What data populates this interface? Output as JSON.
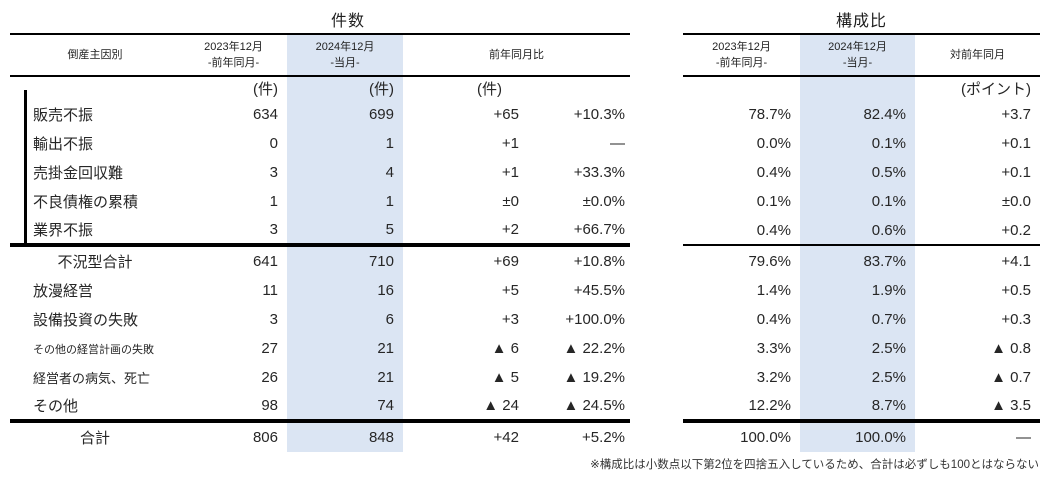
{
  "titles": {
    "left": "件数",
    "right": "構成比"
  },
  "colors": {
    "highlight": "#dbe5f3",
    "line": "#000000"
  },
  "header": {
    "cause_label": "倒産主因別",
    "col_2023_line1": "2023年12月",
    "col_2023_line2": "-前年同月-",
    "col_2024_line1": "2024年12月",
    "col_2024_line2": "-当月-",
    "yoy_label": "前年同月比",
    "vs_prev_label": "対前年同月"
  },
  "units": {
    "ken": "(件)",
    "point": "(ポイント)"
  },
  "rows": [
    {
      "type": "cause",
      "label_class": "",
      "label": "販売不振",
      "c2023": "634",
      "c2024": "699",
      "diff": "+65",
      "pct": "+10.3%",
      "r2023": "78.7%",
      "r2024": "82.4%",
      "rdiff": "+3.7"
    },
    {
      "type": "cause",
      "label_class": "",
      "label": "輸出不振",
      "c2023": "0",
      "c2024": "1",
      "diff": "+1",
      "pct": "—",
      "r2023": "0.0%",
      "r2024": "0.1%",
      "rdiff": "+0.1"
    },
    {
      "type": "cause",
      "label_class": "",
      "label": "売掛金回収難",
      "c2023": "3",
      "c2024": "4",
      "diff": "+1",
      "pct": "+33.3%",
      "r2023": "0.4%",
      "r2024": "0.5%",
      "rdiff": "+0.1"
    },
    {
      "type": "cause",
      "label_class": "",
      "label": "不良債権の累積",
      "c2023": "1",
      "c2024": "1",
      "diff": "±0",
      "pct": "±0.0%",
      "r2023": "0.1%",
      "r2024": "0.1%",
      "rdiff": "±0.0"
    },
    {
      "type": "cause",
      "label_class": "",
      "label": "業界不振",
      "c2023": "3",
      "c2024": "5",
      "diff": "+2",
      "pct": "+66.7%",
      "r2023": "0.4%",
      "r2024": "0.6%",
      "rdiff": "+0.2"
    },
    {
      "type": "subtotal",
      "label_class": "",
      "label": "不況型合計",
      "c2023": "641",
      "c2024": "710",
      "diff": "+69",
      "pct": "+10.8%",
      "r2023": "79.6%",
      "r2024": "83.7%",
      "rdiff": "+4.1"
    },
    {
      "type": "cause",
      "label_class": "",
      "label": "放漫経営",
      "c2023": "11",
      "c2024": "16",
      "diff": "+5",
      "pct": "+45.5%",
      "r2023": "1.4%",
      "r2024": "1.9%",
      "rdiff": "+0.5"
    },
    {
      "type": "cause",
      "label_class": "",
      "label": "設備投資の失敗",
      "c2023": "3",
      "c2024": "6",
      "diff": "+3",
      "pct": "+100.0%",
      "r2023": "0.4%",
      "r2024": "0.7%",
      "rdiff": "+0.3"
    },
    {
      "type": "cause",
      "label_class": "small",
      "label": "その他の経営計画の失敗",
      "c2023": "27",
      "c2024": "21",
      "diff": "▲ 6",
      "pct": "▲ 22.2%",
      "r2023": "3.3%",
      "r2024": "2.5%",
      "rdiff": "▲ 0.8"
    },
    {
      "type": "cause",
      "label_class": "medium",
      "label": "経営者の病気、死亡",
      "c2023": "26",
      "c2024": "21",
      "diff": "▲ 5",
      "pct": "▲ 19.2%",
      "r2023": "3.2%",
      "r2024": "2.5%",
      "rdiff": "▲ 0.7"
    },
    {
      "type": "cause",
      "label_class": "",
      "label": "その他",
      "c2023": "98",
      "c2024": "74",
      "diff": "▲ 24",
      "pct": "▲ 24.5%",
      "r2023": "12.2%",
      "r2024": "8.7%",
      "rdiff": "▲ 3.5"
    },
    {
      "type": "total",
      "label_class": "",
      "label": "合計",
      "c2023": "806",
      "c2024": "848",
      "diff": "+42",
      "pct": "+5.2%",
      "r2023": "100.0%",
      "r2024": "100.0%",
      "rdiff": "—"
    }
  ],
  "footnote": "※構成比は小数点以下第2位を四捨五入しているため、合計は必ずしも100とはならない"
}
